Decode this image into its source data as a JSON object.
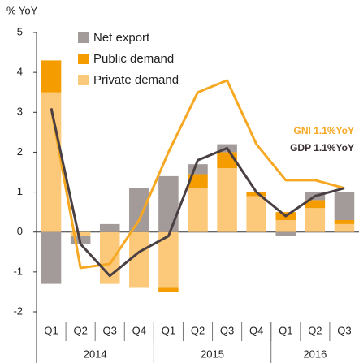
{
  "chart_data": {
    "type": "stacked_bar_line",
    "y_label": "% YoY",
    "categories": [
      "Q1",
      "Q2",
      "Q3",
      "Q4",
      "Q1",
      "Q2",
      "Q3",
      "Q4",
      "Q1",
      "Q2",
      "Q3"
    ],
    "groups": [
      {
        "label": "2014",
        "size": 4
      },
      {
        "label": "2015",
        "size": 4
      },
      {
        "label": "2016",
        "size": 3
      }
    ],
    "series": [
      {
        "name": "Private demand",
        "color": "#fcc97a",
        "kind": "bar",
        "values": [
          3.5,
          -0.1,
          -1.3,
          -1.4,
          -1.4,
          1.1,
          1.6,
          0.9,
          0.3,
          0.6,
          0.2
        ]
      },
      {
        "name": "Public demand",
        "color": "#f59c00",
        "kind": "bar",
        "values": [
          0.8,
          0,
          0,
          0,
          -0.1,
          0.35,
          0.4,
          0.1,
          0.2,
          0.2,
          0.1
        ]
      },
      {
        "name": "Net export",
        "color": "#a39a9a",
        "kind": "bar",
        "values": [
          -1.3,
          -0.2,
          0.2,
          1.1,
          1.4,
          0.25,
          0.2,
          0,
          -0.1,
          0.2,
          0.7
        ]
      },
      {
        "name": "GNI",
        "color": "#f7a823",
        "kind": "line",
        "values": [
          3.1,
          -0.9,
          -0.8,
          0.3,
          2.0,
          3.5,
          3.8,
          2.2,
          1.3,
          1.3,
          1.1
        ]
      },
      {
        "name": "GDP",
        "color": "#4a4044",
        "kind": "line",
        "values": [
          3.1,
          -0.3,
          -1.1,
          -0.5,
          -0.1,
          1.8,
          2.1,
          1.0,
          0.4,
          0.9,
          1.1
        ]
      }
    ],
    "annotations": [
      "GNI 1.1%YoY",
      "GDP 1.1%YoY"
    ],
    "ylim": [
      -2,
      5
    ],
    "yticks": [
      -2,
      -1,
      0,
      1,
      2,
      3,
      4,
      5
    ]
  }
}
